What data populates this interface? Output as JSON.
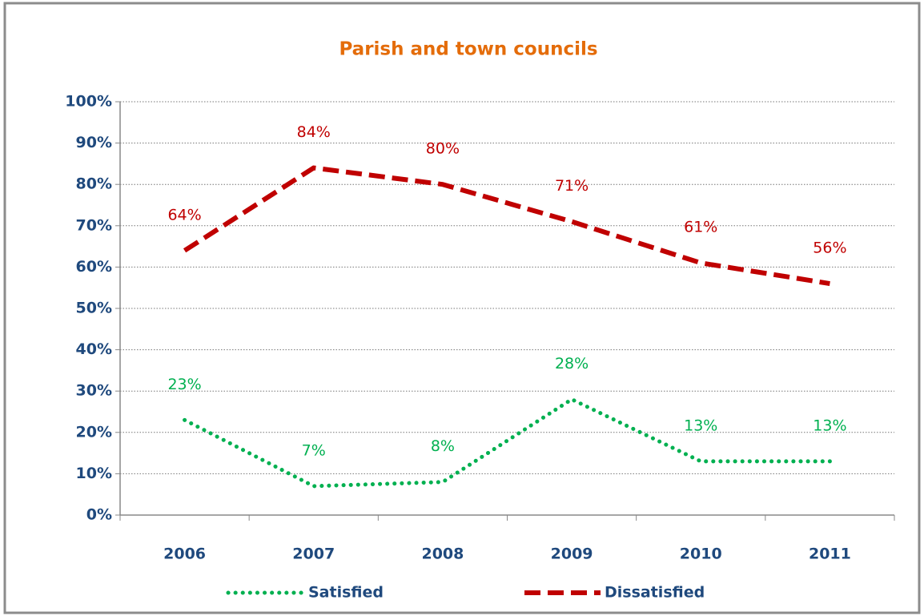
{
  "chart_data": {
    "type": "line",
    "title": "Parish and town councils",
    "categories": [
      "2006",
      "2007",
      "2008",
      "2009",
      "2010",
      "2011"
    ],
    "series": [
      {
        "name": "Satisfied",
        "color": "#00b050",
        "style": "dotted",
        "values": [
          23,
          7,
          8,
          28,
          13,
          13
        ],
        "value_labels": [
          "23%",
          "7%",
          "8%",
          "28%",
          "13%",
          "13%"
        ]
      },
      {
        "name": "Dissatisfied",
        "color": "#c00000",
        "style": "dashed",
        "values": [
          64,
          84,
          80,
          71,
          61,
          56
        ],
        "value_labels": [
          "64%",
          "84%",
          "80%",
          "71%",
          "61%",
          "56%"
        ]
      }
    ],
    "ylim": [
      0,
      100
    ],
    "yticks": [
      {
        "value": 0,
        "label": "0%"
      },
      {
        "value": 10,
        "label": "10%"
      },
      {
        "value": 20,
        "label": "20%"
      },
      {
        "value": 30,
        "label": "30%"
      },
      {
        "value": 40,
        "label": "40%"
      },
      {
        "value": 50,
        "label": "50%"
      },
      {
        "value": 60,
        "label": "60%"
      },
      {
        "value": 70,
        "label": "70%"
      },
      {
        "value": 80,
        "label": "80%"
      },
      {
        "value": 90,
        "label": "90%"
      },
      {
        "value": 100,
        "label": "100%"
      }
    ],
    "grid": true,
    "legend": "bottom"
  }
}
